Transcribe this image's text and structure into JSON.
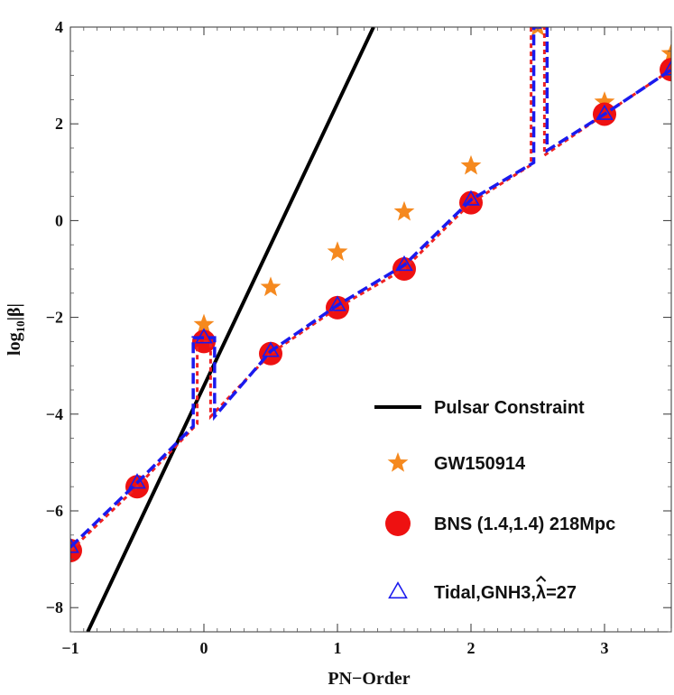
{
  "chart_data": {
    "type": "line",
    "xlabel": "PN−Order",
    "ylabel_parts": {
      "base": "log",
      "sub": "10",
      "rest": "|β|"
    },
    "xlim": [
      -1,
      3.5
    ],
    "ylim": [
      -8.5,
      4
    ],
    "x_ticks": [
      -1,
      0,
      1,
      2,
      3
    ],
    "x_tick_labels": [
      "−1",
      "0",
      "1",
      "2",
      "3"
    ],
    "y_ticks": [
      -8,
      -6,
      -4,
      -2,
      0,
      2,
      4
    ],
    "y_tick_labels": [
      "−8",
      "−6",
      "−4",
      "−2",
      "0",
      "2",
      "4"
    ],
    "grid": false,
    "legend_position": "bottom-right",
    "series": [
      {
        "name": "Pulsar Constraint",
        "kind": "line",
        "color": "#000000",
        "x": [
          -0.87,
          1.27
        ],
        "y": [
          -8.5,
          4
        ]
      },
      {
        "name": "GW150914",
        "kind": "star",
        "color": "#f5891f",
        "x": [
          0,
          0.5,
          1,
          1.5,
          2,
          2.5,
          3,
          3.5
        ],
        "y": [
          -2.15,
          -1.38,
          -0.65,
          0.18,
          1.13,
          4.0,
          2.45,
          3.45
        ]
      },
      {
        "name": "BNS (1.4,1.4) 218Mpc",
        "kind": "circle",
        "color": "#ee1111",
        "x": [
          -1,
          -0.5,
          0,
          0.5,
          1,
          1.5,
          2,
          3,
          3.5
        ],
        "y": [
          -6.82,
          -5.5,
          -2.5,
          -2.75,
          -1.8,
          -1.0,
          0.37,
          2.2,
          3.12
        ]
      },
      {
        "name": "Tidal,GNH3,",
        "name_suffix": "=27",
        "lambda_symbol": "λ",
        "kind": "triangle",
        "color": "#1a1aee",
        "x": [
          -1,
          -0.5,
          0,
          0.5,
          1,
          1.5,
          2,
          3,
          3.5
        ],
        "y": [
          -6.75,
          -5.42,
          -2.42,
          -2.7,
          -1.75,
          -0.92,
          0.43,
          2.2,
          3.12
        ]
      }
    ],
    "dashed_curves": [
      {
        "color": "#ee2222",
        "x": [
          -1,
          -0.5,
          -0.05,
          -0.05,
          0.05,
          0.05,
          0.5,
          1,
          1.5,
          2,
          2.45,
          2.45,
          2.55,
          2.55,
          3,
          3.5
        ],
        "y": [
          -6.82,
          -5.5,
          -4.2,
          -2.5,
          -2.5,
          -4.05,
          -2.75,
          -1.8,
          -1.0,
          0.37,
          1.15,
          4.0,
          4.0,
          1.35,
          2.2,
          3.12
        ]
      },
      {
        "color": "#1a1aee",
        "x": [
          -1,
          -0.5,
          -0.08,
          -0.08,
          0.08,
          0.08,
          0.5,
          1,
          1.5,
          2,
          2.47,
          2.47,
          2.57,
          2.57,
          3,
          3.5
        ],
        "y": [
          -6.75,
          -5.42,
          -4.25,
          -2.42,
          -2.42,
          -4.05,
          -2.7,
          -1.75,
          -0.92,
          0.43,
          1.2,
          4.0,
          4.0,
          1.45,
          2.2,
          3.12
        ]
      }
    ]
  }
}
